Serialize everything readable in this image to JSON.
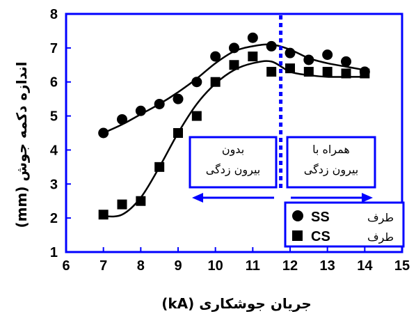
{
  "chart_data": {
    "type": "scatter",
    "xlabel": "جریان جوشکاری (kA)",
    "ylabel": "اندازه دکمه جوش (mm)",
    "xlim": [
      6,
      15
    ],
    "ylim": [
      1,
      8
    ],
    "x_ticks": [
      "6",
      "7",
      "8",
      "9",
      "10",
      "11",
      "12",
      "13",
      "14",
      "15"
    ],
    "y_ticks": [
      "1",
      "2",
      "3",
      "4",
      "5",
      "6",
      "7",
      "8"
    ],
    "grid": false,
    "legend_position": "bottom-right",
    "colors": {
      "frame": "#0000ff",
      "divider": "#0000ff",
      "arrow": "#0000ff",
      "data": "#000000"
    },
    "divider_x": 11.75,
    "series": [
      {
        "name": "SS طرف",
        "marker": "circle",
        "x": [
          7,
          7.5,
          8,
          8.5,
          9,
          9.5,
          10,
          10.5,
          11,
          11.5,
          12,
          12.5,
          13,
          13.5,
          14
        ],
        "y": [
          4.5,
          4.9,
          5.15,
          5.35,
          5.5,
          6.0,
          6.75,
          7.0,
          7.3,
          7.05,
          6.85,
          6.65,
          6.8,
          6.6,
          6.3
        ]
      },
      {
        "name": "CS طرف",
        "marker": "square",
        "x": [
          7,
          7.5,
          8,
          8.5,
          9,
          9.5,
          10,
          10.5,
          11,
          11.5,
          12,
          12.5,
          13,
          13.5,
          14
        ],
        "y": [
          2.1,
          2.4,
          2.5,
          3.5,
          4.5,
          5.0,
          6.0,
          6.5,
          6.75,
          6.3,
          6.4,
          6.3,
          6.3,
          6.25,
          6.25
        ]
      }
    ],
    "fit_curves": [
      {
        "series": "SS طرف",
        "x": [
          7,
          7.5,
          8,
          8.5,
          9,
          9.5,
          10,
          10.5,
          11,
          11.5,
          12,
          12.5,
          13,
          13.5,
          14
        ],
        "y": [
          4.5,
          4.75,
          5.05,
          5.35,
          5.7,
          6.1,
          6.55,
          6.9,
          7.05,
          7.1,
          6.95,
          6.7,
          6.55,
          6.45,
          6.35
        ]
      },
      {
        "series": "CS طرف",
        "x": [
          7,
          7.5,
          8,
          8.5,
          9,
          9.5,
          10,
          10.5,
          11,
          11.5,
          12,
          12.5,
          13,
          13.5,
          14
        ],
        "y": [
          2.05,
          2.1,
          2.6,
          3.5,
          4.5,
          5.35,
          5.95,
          6.35,
          6.55,
          6.6,
          6.3,
          6.2,
          6.15,
          6.15,
          6.15
        ]
      }
    ],
    "annotations": [
      {
        "lines": [
          "بدون",
          "بیرون زدگی"
        ],
        "arrow": "left"
      },
      {
        "lines": [
          "همراه با",
          "بیرون زدگی"
        ],
        "arrow": "right"
      }
    ]
  }
}
